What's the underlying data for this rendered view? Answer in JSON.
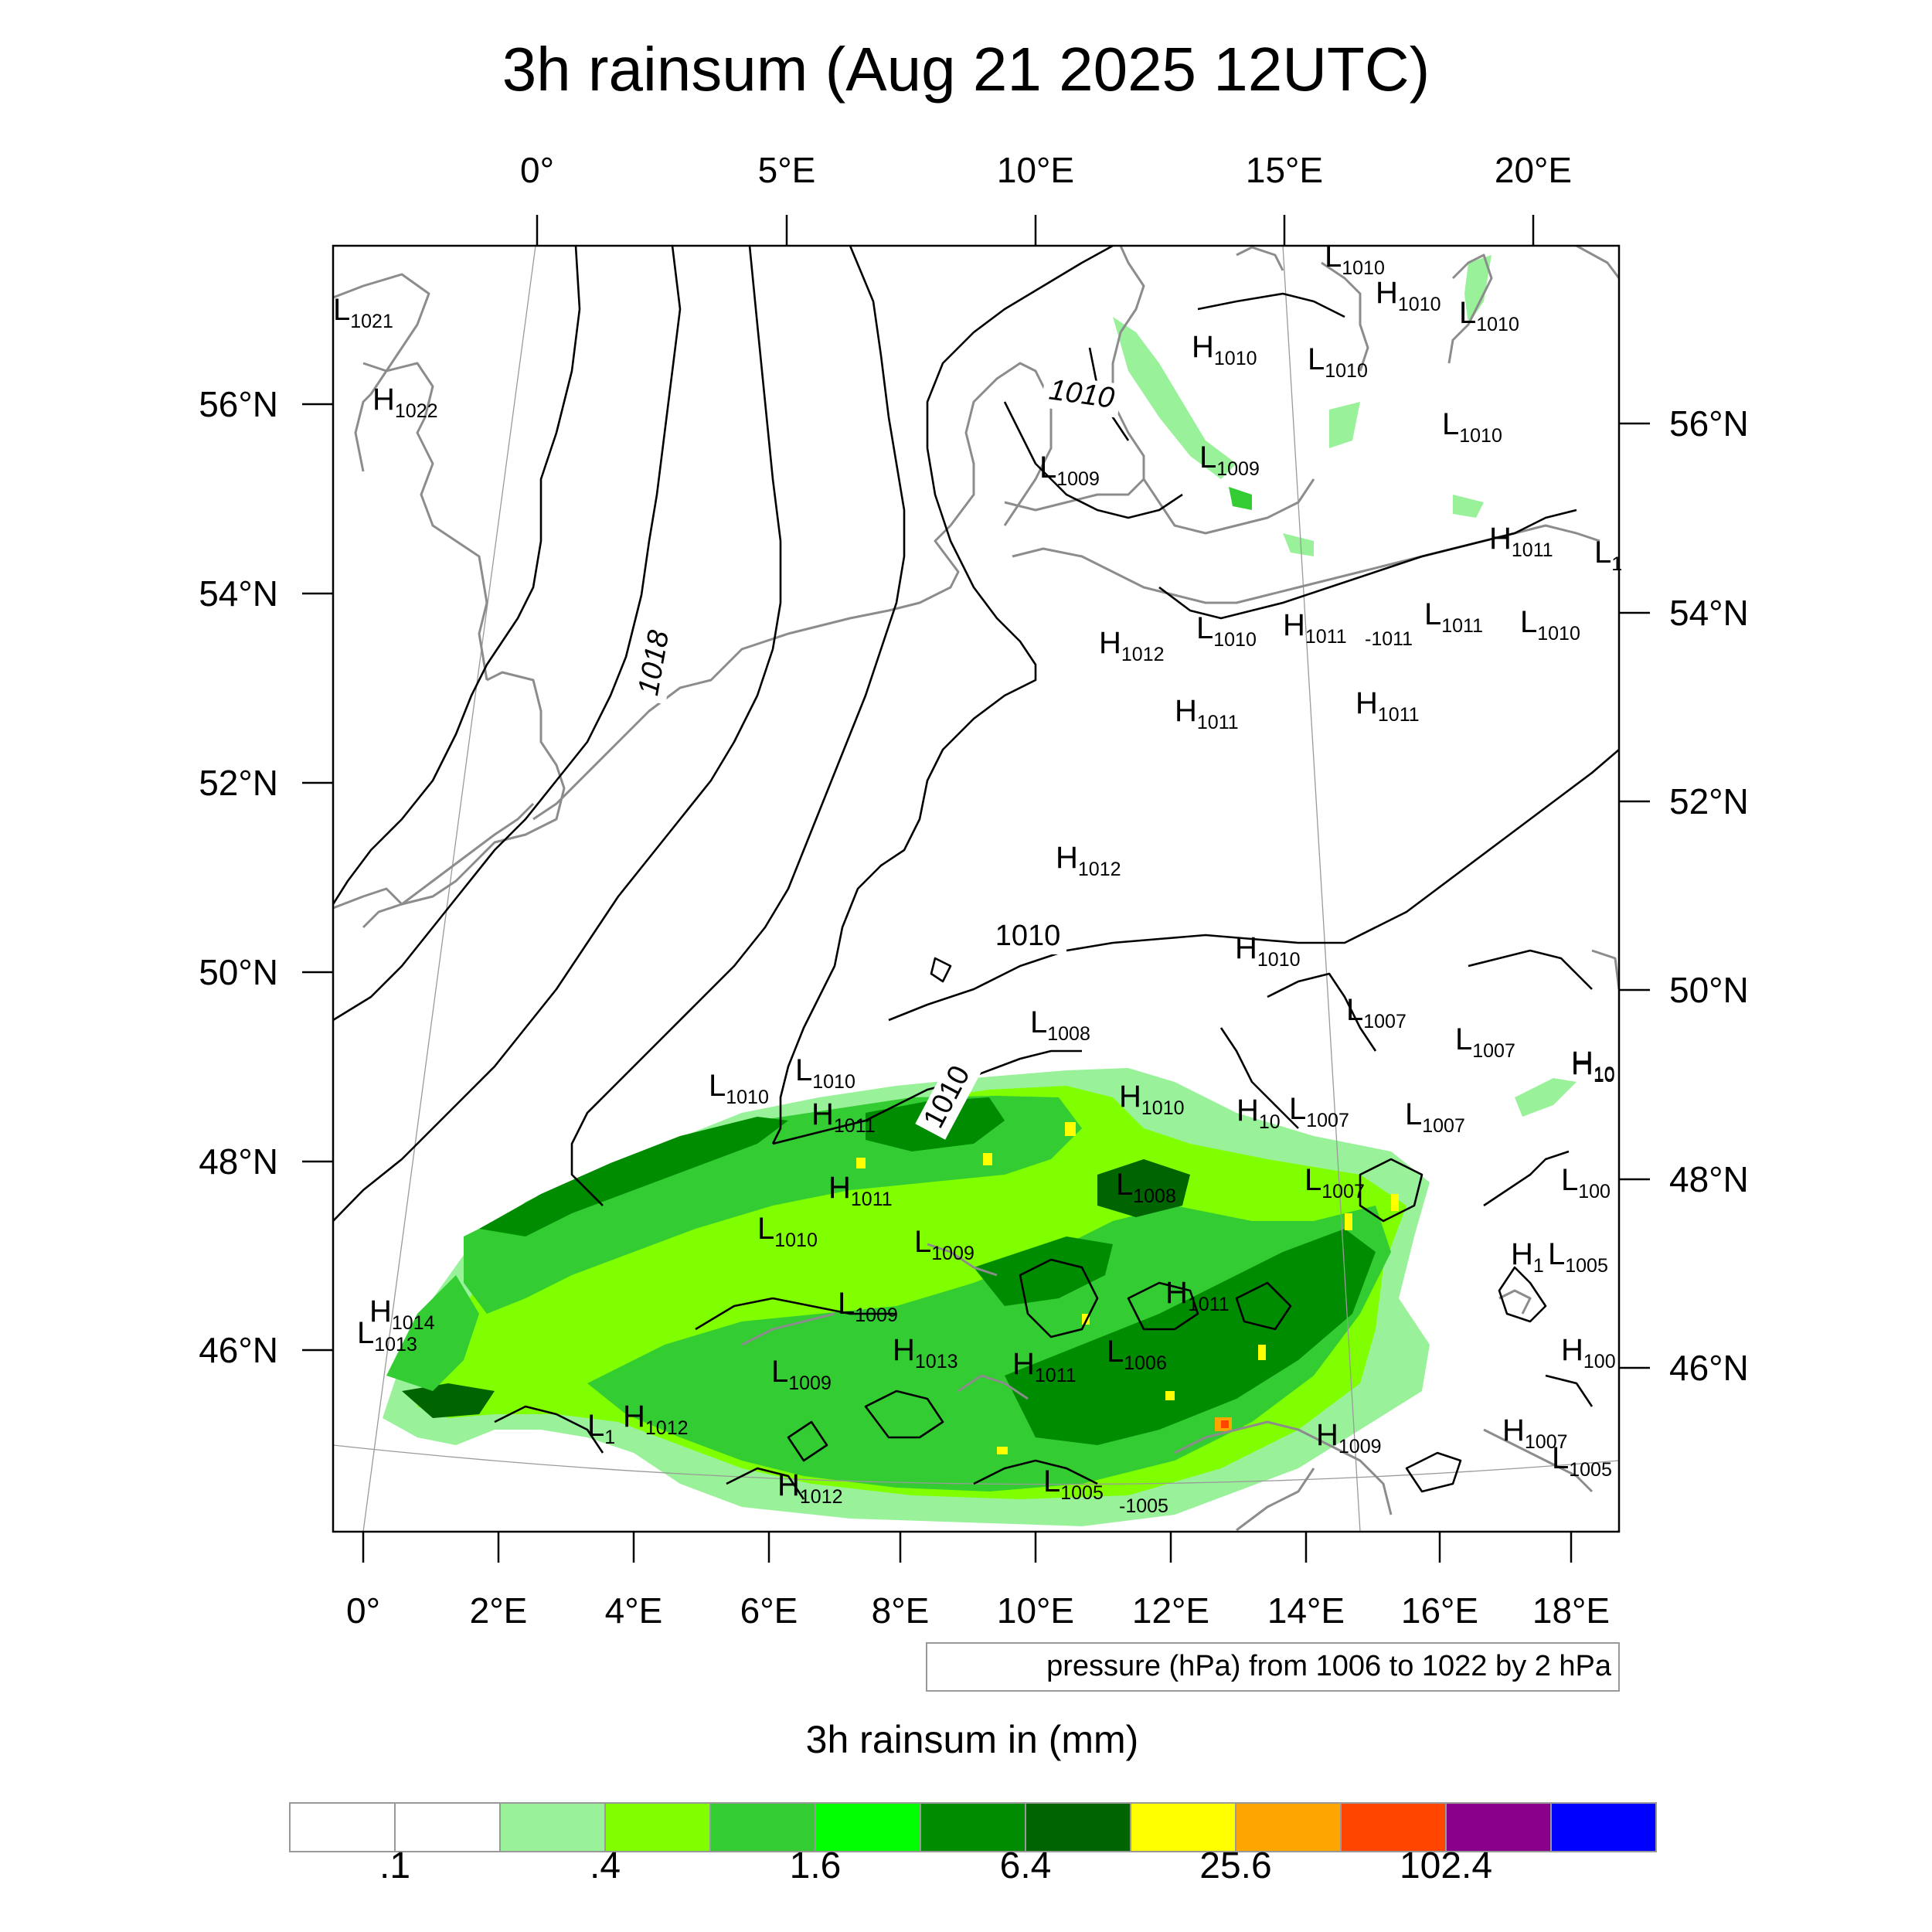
{
  "title": "3h rainsum (Aug 21 2025 12UTC)",
  "top_lon_ticks": [
    "0°",
    "5°E",
    "10°E",
    "15°E",
    "20°E"
  ],
  "bottom_lon_ticks": [
    "0°",
    "2°E",
    "4°E",
    "6°E",
    "8°E",
    "10°E",
    "12°E",
    "14°E",
    "16°E",
    "18°E"
  ],
  "left_lat_ticks": [
    "56°N",
    "54°N",
    "52°N",
    "50°N",
    "48°N",
    "46°N"
  ],
  "right_lat_ticks": [
    "56°N",
    "54°N",
    "52°N",
    "50°N",
    "48°N",
    "46°N"
  ],
  "isobar_labels": [
    "1010",
    "1018",
    "1010",
    "1010"
  ],
  "pressure_centers": [
    {
      "letter": "L",
      "value": "1021"
    },
    {
      "letter": "H",
      "value": "1022"
    },
    {
      "letter": "L",
      "value": "1010"
    },
    {
      "letter": "H",
      "value": "1010"
    },
    {
      "letter": "L",
      "value": "1010"
    },
    {
      "letter": "H",
      "value": "1010"
    },
    {
      "letter": "L",
      "value": "1010"
    },
    {
      "letter": "L",
      "value": "1010"
    },
    {
      "letter": "L",
      "value": "1009"
    },
    {
      "letter": "L",
      "value": "1009"
    },
    {
      "letter": "H",
      "value": "1011"
    },
    {
      "letter": "L",
      "value": "1"
    },
    {
      "letter": "H",
      "value": "1012"
    },
    {
      "letter": "L",
      "value": "1010"
    },
    {
      "letter": "H",
      "value": "1011"
    },
    {
      "letter": "L",
      "value": "1011"
    },
    {
      "letter": "L",
      "value": "1010"
    },
    {
      "letter": "H",
      "value": "1011"
    },
    {
      "letter": "H",
      "value": "1011"
    },
    {
      "letter": "H",
      "value": "1012"
    },
    {
      "letter": "H",
      "value": "1010"
    },
    {
      "letter": "L",
      "value": "1008"
    },
    {
      "letter": "L",
      "value": "1007"
    },
    {
      "letter": "L",
      "value": "1007"
    },
    {
      "letter": "H",
      "value": "10"
    },
    {
      "letter": "L",
      "value": "1010"
    },
    {
      "letter": "L",
      "value": "1010"
    },
    {
      "letter": "H",
      "value": "1011"
    },
    {
      "letter": "H",
      "value": "1010"
    },
    {
      "letter": "H",
      "value": "10"
    },
    {
      "letter": "L",
      "value": "1007"
    },
    {
      "letter": "L",
      "value": "1007"
    },
    {
      "letter": "H",
      "value": "10"
    },
    {
      "letter": "H",
      "value": "1011"
    },
    {
      "letter": "L",
      "value": "1008"
    },
    {
      "letter": "L",
      "value": "1007"
    },
    {
      "letter": "L",
      "value": "100"
    },
    {
      "letter": "L",
      "value": "1010"
    },
    {
      "letter": "L",
      "value": "1009"
    },
    {
      "letter": "H",
      "value": "1"
    },
    {
      "letter": "L",
      "value": "1005"
    },
    {
      "letter": "H",
      "value": "1011"
    },
    {
      "letter": "H",
      "value": "1014"
    },
    {
      "letter": "L",
      "value": "1013"
    },
    {
      "letter": "L",
      "value": "1009"
    },
    {
      "letter": "H",
      "value": "1013"
    },
    {
      "letter": "H",
      "value": "1011"
    },
    {
      "letter": "L",
      "value": "1006"
    },
    {
      "letter": "H",
      "value": "100"
    },
    {
      "letter": "L",
      "value": "1009"
    },
    {
      "letter": "L",
      "value": "1"
    },
    {
      "letter": "H",
      "value": "1012"
    },
    {
      "letter": "H",
      "value": "1009"
    },
    {
      "letter": "H",
      "value": "1007"
    },
    {
      "letter": "L",
      "value": "1005"
    },
    {
      "letter": "H",
      "value": "1012"
    },
    {
      "letter": "L",
      "value": "1005"
    }
  ],
  "minus_labels": [
    "-1011",
    "-1005"
  ],
  "contour_note": "pressure (hPa) from 1006 to 1022 by 2 hPa",
  "colorbar": {
    "title": "3h rainsum in (mm)",
    "tick_labels": [
      ".1",
      ".4",
      "1.6",
      "6.4",
      "25.6",
      "102.4"
    ],
    "colors": [
      "#ffffff",
      "#ffffff",
      "#99f299",
      "#80ff00",
      "#33cc33",
      "#00ff00",
      "#008c00",
      "#006400",
      "#ffff00",
      "#ffa500",
      "#ff4500",
      "#8b008b",
      "#0000ff"
    ]
  },
  "rain_colors": {
    "light": "#99f299",
    "lime": "#80ff00",
    "mid": "#33cc33",
    "green": "#00ff00",
    "dark": "#008c00",
    "darker": "#006400",
    "yellow": "#ffff00",
    "orange": "#ffa500",
    "red": "#ff4500"
  }
}
